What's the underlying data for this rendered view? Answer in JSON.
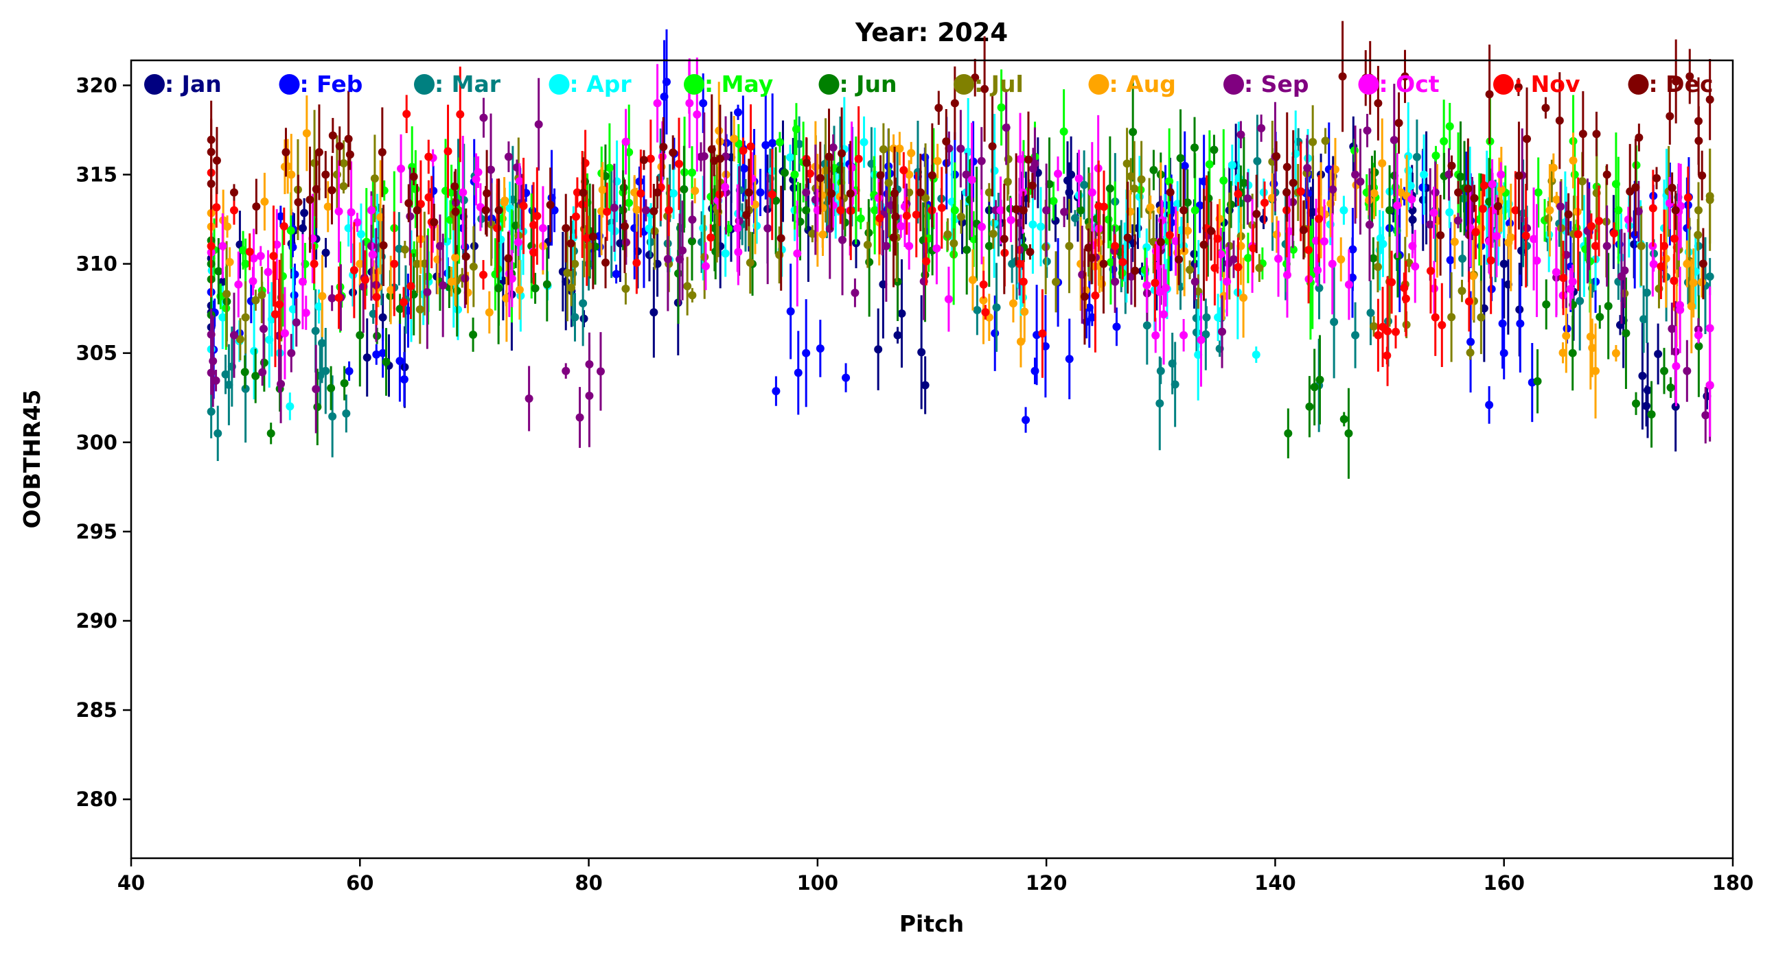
{
  "chart_data": {
    "type": "scatter",
    "title": "Year: 2024",
    "xlabel": "Pitch",
    "ylabel": "OOBTHR45",
    "xlim": [
      40,
      180
    ],
    "ylim": [
      276.7,
      321.4
    ],
    "xticks": [
      40,
      60,
      80,
      100,
      120,
      140,
      160,
      180
    ],
    "yticks": [
      280,
      285,
      290,
      295,
      300,
      305,
      310,
      315,
      320
    ],
    "grid": false,
    "legend_position": "top",
    "error_bars": true,
    "series": [
      {
        "name": ": Jan",
        "color": "#000080",
        "seed": 11,
        "values": [
          [
            48,
            309
          ],
          [
            55,
            312
          ],
          [
            62,
            307
          ],
          [
            70,
            311
          ],
          [
            78,
            309
          ],
          [
            86,
            310
          ],
          [
            94,
            313
          ],
          [
            100,
            314
          ],
          [
            107,
            306
          ],
          [
            115,
            313
          ],
          [
            122,
            314
          ],
          [
            128,
            312
          ],
          [
            136,
            313
          ],
          [
            144,
            315
          ],
          [
            152,
            313
          ],
          [
            160,
            310
          ],
          [
            168,
            309
          ],
          [
            175,
            302
          ]
        ]
      },
      {
        "name": ": Feb",
        "color": "#0000ff",
        "seed": 23,
        "values": [
          [
            49,
            306
          ],
          [
            56,
            311
          ],
          [
            62,
            305
          ],
          [
            69,
            312
          ],
          [
            77,
            313
          ],
          [
            84,
            312
          ],
          [
            90,
            319
          ],
          [
            95,
            314
          ],
          [
            99,
            305
          ],
          [
            106,
            313
          ],
          [
            112,
            315
          ],
          [
            119,
            304
          ],
          [
            124,
            307
          ],
          [
            131,
            313
          ],
          [
            143,
            315
          ],
          [
            150,
            312
          ],
          [
            158,
            311
          ],
          [
            160,
            305
          ],
          [
            168,
            309
          ],
          [
            176,
            312
          ]
        ]
      },
      {
        "name": ": Mar",
        "color": "#008080",
        "seed": 37,
        "values": [
          [
            50,
            303
          ],
          [
            57,
            304
          ],
          [
            64,
            308
          ],
          [
            72,
            312
          ],
          [
            80,
            310
          ],
          [
            88,
            312
          ],
          [
            96,
            314
          ],
          [
            103,
            313
          ],
          [
            110,
            313
          ],
          [
            117,
            310
          ],
          [
            124,
            312
          ],
          [
            130,
            304
          ],
          [
            134,
            307
          ],
          [
            140,
            314
          ],
          [
            147,
            306
          ],
          [
            154,
            313
          ],
          [
            162,
            311
          ],
          [
            170,
            309
          ],
          [
            177,
            311
          ]
        ]
      },
      {
        "name": ": Apr",
        "color": "#00ffff",
        "seed": 41,
        "values": [
          [
            48,
            307
          ],
          [
            53,
            305
          ],
          [
            59,
            312
          ],
          [
            66,
            309
          ],
          [
            74,
            311
          ],
          [
            82,
            312
          ],
          [
            90,
            312
          ],
          [
            98,
            313
          ],
          [
            105,
            315
          ],
          [
            113,
            314
          ],
          [
            120,
            311
          ],
          [
            127,
            311
          ],
          [
            132,
            311
          ],
          [
            135,
            307
          ],
          [
            139,
            314
          ],
          [
            146,
            313
          ],
          [
            153,
            315
          ],
          [
            160,
            313
          ],
          [
            167,
            311
          ],
          [
            174,
            312
          ]
        ]
      },
      {
        "name": ": May",
        "color": "#00ff00",
        "seed": 53,
        "values": [
          [
            50,
            310
          ],
          [
            56,
            311
          ],
          [
            63,
            312
          ],
          [
            68,
            314
          ],
          [
            75,
            311
          ],
          [
            83,
            314
          ],
          [
            91,
            314
          ],
          [
            98,
            315
          ],
          [
            105,
            313
          ],
          [
            112,
            313
          ],
          [
            119,
            316
          ],
          [
            126,
            312
          ],
          [
            133,
            313
          ],
          [
            141,
            310
          ],
          [
            148,
            314
          ],
          [
            156,
            315
          ],
          [
            163,
            314
          ],
          [
            170,
            313
          ]
        ]
      },
      {
        "name": ": Jun",
        "color": "#008000",
        "seed": 67,
        "values": [
          [
            47,
            310
          ],
          [
            53,
            303
          ],
          [
            60,
            306
          ],
          [
            67,
            309
          ],
          [
            75,
            311
          ],
          [
            83,
            313
          ],
          [
            91,
            312
          ],
          [
            99,
            313
          ],
          [
            107,
            309
          ],
          [
            115,
            311
          ],
          [
            123,
            313
          ],
          [
            130,
            315
          ],
          [
            137,
            314
          ],
          [
            143,
            302
          ],
          [
            150,
            313
          ],
          [
            158,
            312
          ],
          [
            166,
            305
          ],
          [
            174,
            304
          ]
        ]
      },
      {
        "name": ": Jul",
        "color": "#808000",
        "seed": 71,
        "values": [
          [
            50,
            307
          ],
          [
            58,
            315
          ],
          [
            65,
            310
          ],
          [
            72,
            312
          ],
          [
            80,
            311
          ],
          [
            87,
            310
          ],
          [
            94,
            313
          ],
          [
            101,
            314
          ],
          [
            108,
            314
          ],
          [
            115,
            314
          ],
          [
            122,
            311
          ],
          [
            129,
            313
          ],
          [
            136,
            311
          ],
          [
            142,
            314
          ],
          [
            150,
            309
          ],
          [
            158,
            307
          ],
          [
            165,
            312
          ],
          [
            172,
            311
          ],
          [
            177,
            313
          ]
        ]
      },
      {
        "name": ": Aug",
        "color": "#ffa500",
        "seed": 83,
        "values": [
          [
            47,
            311
          ],
          [
            54,
            315
          ],
          [
            60,
            310
          ],
          [
            68,
            309
          ],
          [
            76,
            311
          ],
          [
            84,
            314
          ],
          [
            92,
            315
          ],
          [
            100,
            313
          ],
          [
            108,
            315
          ],
          [
            115,
            307
          ],
          [
            123,
            310
          ],
          [
            130,
            313
          ],
          [
            137,
            311
          ],
          [
            144,
            313
          ],
          [
            151,
            314
          ],
          [
            158,
            312
          ],
          [
            164,
            313
          ],
          [
            168,
            304
          ],
          [
            176,
            310
          ]
        ]
      },
      {
        "name": ": Sep",
        "color": "#800080",
        "seed": 97,
        "values": [
          [
            49,
            306
          ],
          [
            54,
            305
          ],
          [
            61,
            311
          ],
          [
            67,
            311
          ],
          [
            73,
            316
          ],
          [
            78,
            304
          ],
          [
            85,
            313
          ],
          [
            92,
            314
          ],
          [
            99,
            314
          ],
          [
            106,
            311
          ],
          [
            113,
            315
          ],
          [
            120,
            313
          ],
          [
            126,
            309
          ],
          [
            133,
            309
          ],
          [
            140,
            316
          ],
          [
            147,
            315
          ],
          [
            154,
            314
          ],
          [
            162,
            312
          ],
          [
            169,
            311
          ],
          [
            176,
            304
          ]
        ]
      },
      {
        "name": ": Oct",
        "color": "#ff00ff",
        "seed": 101,
        "values": [
          [
            48,
            311
          ],
          [
            55,
            309
          ],
          [
            61,
            313
          ],
          [
            69,
            314
          ],
          [
            76,
            312
          ],
          [
            86,
            319
          ],
          [
            93,
            312
          ],
          [
            100,
            313
          ],
          [
            108,
            311
          ],
          [
            116,
            313
          ],
          [
            124,
            314
          ],
          [
            130,
            311
          ],
          [
            132,
            306
          ],
          [
            138,
            311
          ],
          [
            145,
            310
          ],
          [
            152,
            311
          ],
          [
            159,
            313
          ],
          [
            166,
            309
          ],
          [
            173,
            311
          ],
          [
            177,
            306
          ]
        ]
      },
      {
        "name": ": Nov",
        "color": "#ff0000",
        "seed": 113,
        "values": [
          [
            49,
            313
          ],
          [
            56,
            310
          ],
          [
            63,
            310
          ],
          [
            66,
            316
          ],
          [
            72,
            312
          ],
          [
            79,
            314
          ],
          [
            87,
            313
          ],
          [
            94,
            314
          ],
          [
            102,
            313
          ],
          [
            110,
            313
          ],
          [
            118,
            309
          ],
          [
            126,
            311
          ],
          [
            134,
            312
          ],
          [
            141,
            313
          ],
          [
            149,
            306
          ],
          [
            154,
            307
          ],
          [
            161,
            313
          ],
          [
            168,
            311
          ],
          [
            174,
            311
          ]
        ]
      },
      {
        "name": ": Dec",
        "color": "#800000",
        "seed": 127,
        "values": [
          [
            49,
            314
          ],
          [
            57,
            315
          ],
          [
            59,
            317
          ],
          [
            65,
            313
          ],
          [
            71,
            313
          ],
          [
            78,
            312
          ],
          [
            86,
            314
          ],
          [
            94,
            314
          ],
          [
            101,
            316
          ],
          [
            109,
            314
          ],
          [
            112,
            319
          ],
          [
            118,
            313
          ],
          [
            125,
            310
          ],
          [
            132,
            313
          ],
          [
            141,
            314
          ],
          [
            149,
            319
          ],
          [
            156,
            314
          ],
          [
            162,
            317
          ],
          [
            169,
            315
          ],
          [
            175,
            313
          ],
          [
            177,
            318
          ]
        ]
      }
    ]
  }
}
